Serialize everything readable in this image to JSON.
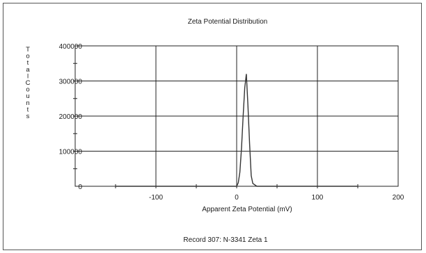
{
  "chart_data": {
    "type": "line",
    "title": "Zeta Potential Distribution",
    "xlabel": "Apparent Zeta Potential (mV)",
    "ylabel": "Total Counts",
    "caption": "Record 307: N-3341 Zeta 1",
    "xlim": [
      -200,
      200
    ],
    "ylim": [
      0,
      400000
    ],
    "xticks": [
      -100,
      0,
      100,
      200
    ],
    "yticks": [
      0,
      100000,
      200000,
      300000,
      400000
    ],
    "grid": true,
    "legend": "none",
    "series": [
      {
        "color": "#333333",
        "x": [
          -150,
          -100,
          -50,
          0,
          2,
          4,
          6,
          8,
          10,
          12,
          14,
          16,
          18,
          20,
          25,
          50,
          100,
          150
        ],
        "y": [
          0,
          0,
          0,
          0,
          10000,
          40000,
          110000,
          200000,
          280000,
          320000,
          230000,
          120000,
          30000,
          8000,
          0,
          0,
          0,
          0
        ]
      }
    ]
  }
}
